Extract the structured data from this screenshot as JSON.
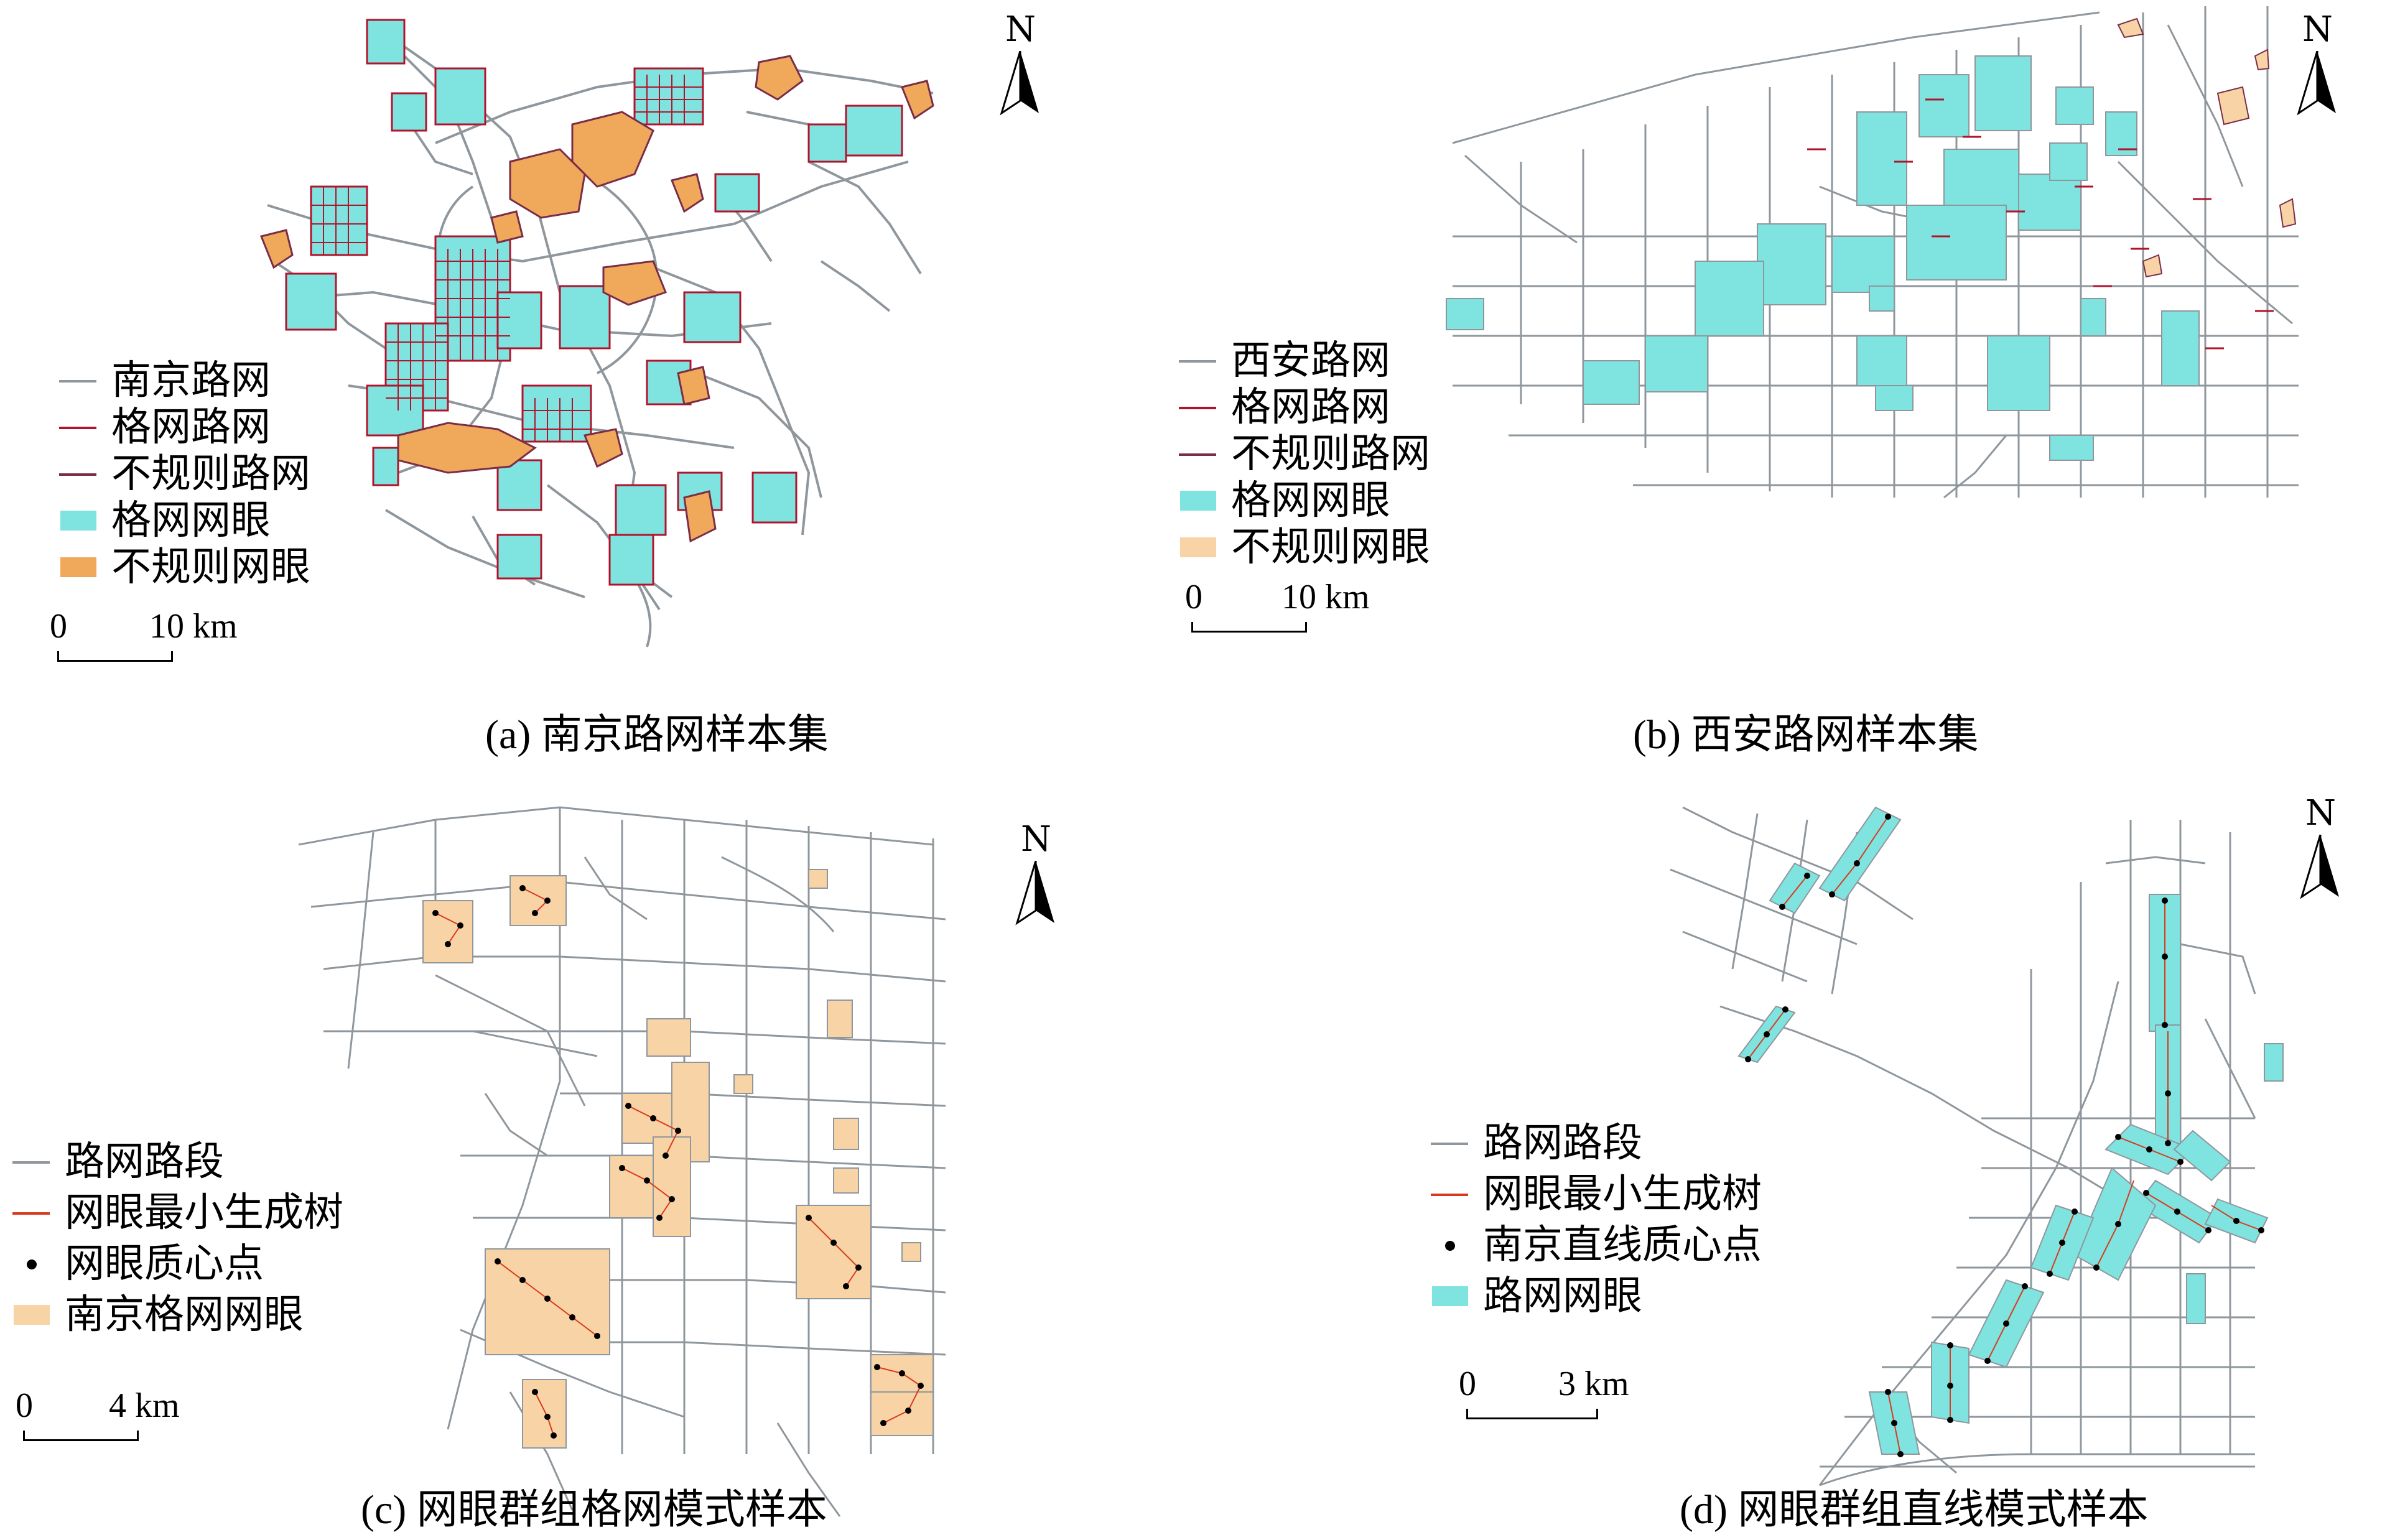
{
  "colors": {
    "road": "#8f979d",
    "grid_road": "#b0142c",
    "irregular_road": "#7a2d48",
    "grid_mesh": "#7fe3e0",
    "irregular_mesh": "#f0a85a",
    "nanjing_grid_mesh": "#f7d3a6",
    "mst": "#d83a1c",
    "centroid": "#000000"
  },
  "north_label": "N",
  "panels": {
    "a": {
      "caption": "(a) 南京路网样本集",
      "legend": [
        {
          "label": "南京路网",
          "symbol": "line",
          "color_key": "road"
        },
        {
          "label": "格网路网",
          "symbol": "line",
          "color_key": "grid_road"
        },
        {
          "label": "不规则路网",
          "symbol": "line",
          "color_key": "irregular_road"
        },
        {
          "label": "格网网眼",
          "symbol": "patch",
          "color_key": "grid_mesh"
        },
        {
          "label": "不规则网眼",
          "symbol": "patch",
          "color_key": "irregular_mesh"
        }
      ],
      "scale": {
        "start": "0",
        "end": "10 km"
      }
    },
    "b": {
      "caption": "(b) 西安路网样本集",
      "legend": [
        {
          "label": "西安路网",
          "symbol": "line",
          "color_key": "road"
        },
        {
          "label": "格网路网",
          "symbol": "line",
          "color_key": "grid_road"
        },
        {
          "label": "不规则路网",
          "symbol": "line",
          "color_key": "irregular_road"
        },
        {
          "label": "格网网眼",
          "symbol": "patch",
          "color_key": "grid_mesh"
        },
        {
          "label": "不规则网眼",
          "symbol": "patch",
          "color_key": "nanjing_grid_mesh"
        }
      ],
      "scale": {
        "start": "0",
        "end": "10 km"
      }
    },
    "c": {
      "caption": "(c) 网眼群组格网模式样本",
      "legend": [
        {
          "label": "路网路段",
          "symbol": "line",
          "color_key": "road"
        },
        {
          "label": "网眼最小生成树",
          "symbol": "line",
          "color_key": "mst"
        },
        {
          "label": "网眼质心点",
          "symbol": "dot",
          "color_key": "centroid"
        },
        {
          "label": "南京格网网眼",
          "symbol": "patch",
          "color_key": "nanjing_grid_mesh"
        }
      ],
      "scale": {
        "start": "0",
        "end": "4 km"
      }
    },
    "d": {
      "caption": "(d) 网眼群组直线模式样本",
      "legend": [
        {
          "label": "路网路段",
          "symbol": "line",
          "color_key": "road"
        },
        {
          "label": "网眼最小生成树",
          "symbol": "line",
          "color_key": "mst"
        },
        {
          "label": "南京直线质心点",
          "symbol": "dot",
          "color_key": "centroid"
        },
        {
          "label": "路网网眼",
          "symbol": "patch",
          "color_key": "grid_mesh"
        }
      ],
      "scale": {
        "start": "0",
        "end": "3 km"
      }
    }
  }
}
